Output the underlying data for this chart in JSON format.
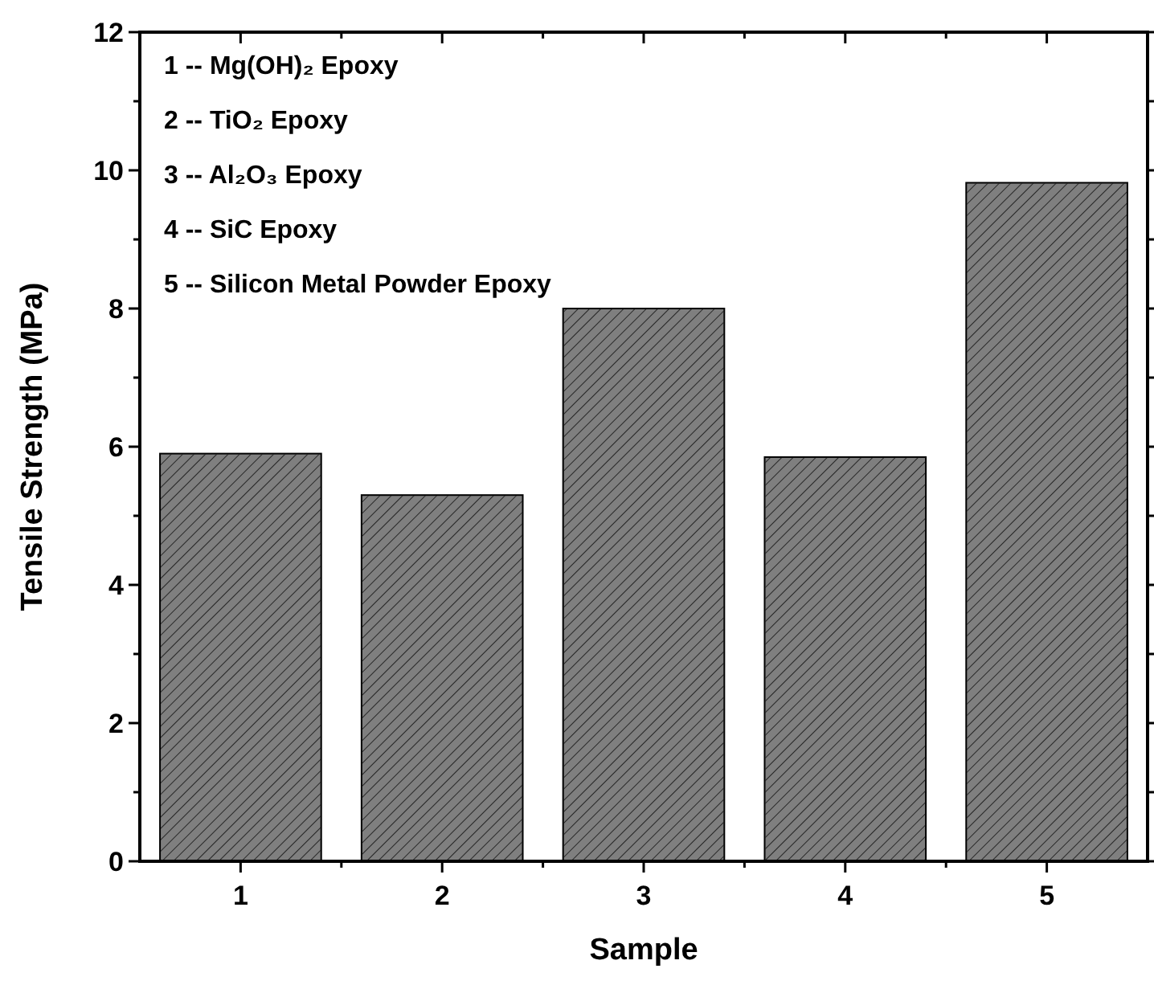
{
  "chart_data": {
    "type": "bar",
    "xlabel": "Sample",
    "ylabel": "Tensile Strength (MPa)",
    "categories": [
      "1",
      "2",
      "3",
      "4",
      "5"
    ],
    "values": [
      5.9,
      5.3,
      8.0,
      5.85,
      9.82
    ],
    "color": "#7f7f7f",
    "ylim": [
      0,
      12
    ],
    "yticks": [
      0,
      {
        "value": 1,
        "label": null
      },
      2,
      {
        "value": 3,
        "label": null
      },
      4,
      {
        "value": 5,
        "label": null
      },
      6,
      {
        "value": 7,
        "label": null
      },
      8,
      {
        "value": 9,
        "label": null
      },
      10,
      {
        "value": 11,
        "label": null
      },
      12
    ],
    "annotations": [
      "1 --  Mg(OH)₂ Epoxy",
      "2 -- TiO₂ Epoxy",
      "3 -- Al₂O₃ Epoxy",
      "4 -- SiC Epoxy",
      "5 -- Silicon Metal Powder Epoxy"
    ]
  }
}
